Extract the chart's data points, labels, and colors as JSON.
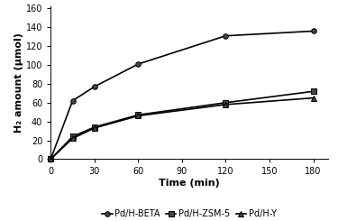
{
  "title": "",
  "xlabel": "Time (min)",
  "ylabel": "H₂ amount (μmol)",
  "xlim": [
    0,
    190
  ],
  "ylim": [
    0,
    162
  ],
  "xticks": [
    0,
    30,
    60,
    90,
    120,
    150,
    180
  ],
  "yticks": [
    0,
    20,
    40,
    60,
    80,
    100,
    120,
    140,
    160
  ],
  "series": [
    {
      "label": "Pd/H-BETA",
      "x": [
        0,
        15,
        30,
        60,
        120,
        180
      ],
      "y": [
        0,
        62,
        77,
        101,
        131,
        136
      ],
      "color": "#000000",
      "marker": "o",
      "markersize": 4,
      "linewidth": 1.2
    },
    {
      "label": "Pd/H-ZSM-5",
      "x": [
        0,
        15,
        30,
        60,
        120,
        180
      ],
      "y": [
        0,
        24,
        34,
        47,
        60,
        72
      ],
      "color": "#000000",
      "marker": "s",
      "markersize": 4,
      "linewidth": 1.2
    },
    {
      "label": "Pd/H-Y",
      "x": [
        0,
        15,
        30,
        60,
        120,
        180
      ],
      "y": [
        0,
        22,
        33,
        46,
        58,
        65
      ],
      "color": "#000000",
      "marker": "^",
      "markersize": 4,
      "linewidth": 1.2
    }
  ],
  "background_color": "#ffffff",
  "tick_fontsize": 7,
  "label_fontsize": 8,
  "legend_fontsize": 7
}
